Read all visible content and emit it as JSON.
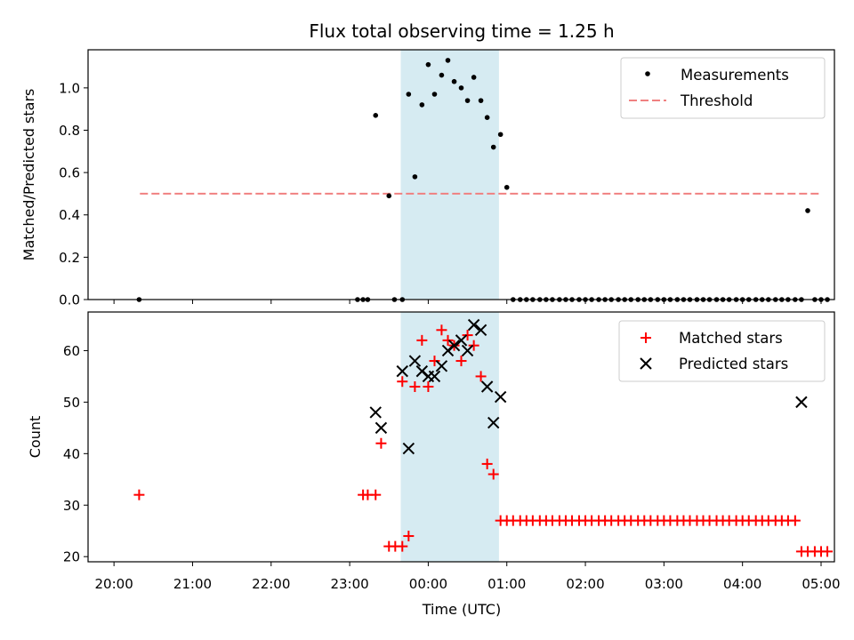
{
  "chart_data": {
    "type": "scatter",
    "title": "Flux total observing time = 1.25 h",
    "x_label": "Time (UTC)",
    "x_unit": "hours relative to 00:00 UTC",
    "x_range": [
      -4.33,
      5.17
    ],
    "x_ticks": [
      {
        "value": -4,
        "label": "20:00"
      },
      {
        "value": -3,
        "label": "21:00"
      },
      {
        "value": -2,
        "label": "22:00"
      },
      {
        "value": -1,
        "label": "23:00"
      },
      {
        "value": 0,
        "label": "00:00"
      },
      {
        "value": 1,
        "label": "01:00"
      },
      {
        "value": 2,
        "label": "02:00"
      },
      {
        "value": 3,
        "label": "03:00"
      },
      {
        "value": 4,
        "label": "04:00"
      },
      {
        "value": 5,
        "label": "05:00"
      }
    ],
    "highlight_span": {
      "x_start": -0.35,
      "x_end": 0.9,
      "color": "#add8e6"
    },
    "top_panel": {
      "ylabel": "Matched/Predicted stars",
      "ylim": [
        0,
        1.18
      ],
      "y_ticks": [
        0.0,
        0.2,
        0.4,
        0.6,
        0.8,
        1.0
      ],
      "y_tick_labels": [
        "0.0",
        "0.2",
        "0.4",
        "0.6",
        "0.8",
        "1.0"
      ],
      "legend": [
        "Measurements",
        "Threshold"
      ],
      "threshold": {
        "name": "Threshold",
        "value": 0.5,
        "x_start": -3.67,
        "x_end": 5.0,
        "color": "#f08080"
      },
      "measurements": {
        "name": "Measurements",
        "color": "#000000",
        "x": [
          -3.68,
          -0.9,
          -0.83,
          -0.77,
          -0.67,
          -0.5,
          -0.43,
          -0.33,
          -0.25,
          -0.17,
          -0.08,
          0.0,
          0.08,
          0.17,
          0.25,
          0.33,
          0.42,
          0.5,
          0.58,
          0.67,
          0.75,
          0.83,
          0.92,
          1.0,
          1.08,
          1.17,
          1.25,
          1.33,
          1.42,
          1.5,
          1.58,
          1.67,
          1.75,
          1.83,
          1.92,
          2.0,
          2.08,
          2.17,
          2.25,
          2.33,
          2.42,
          2.5,
          2.58,
          2.67,
          2.75,
          2.83,
          2.92,
          3.0,
          3.08,
          3.17,
          3.25,
          3.33,
          3.42,
          3.5,
          3.58,
          3.67,
          3.75,
          3.83,
          3.92,
          4.0,
          4.08,
          4.17,
          4.25,
          4.33,
          4.42,
          4.5,
          4.58,
          4.67,
          4.75,
          4.83,
          4.92,
          5.0,
          5.08
        ],
        "y": [
          0,
          0,
          0,
          0,
          0.87,
          0.49,
          0,
          0,
          0.97,
          0.58,
          0.92,
          1.11,
          0.97,
          1.06,
          1.13,
          1.03,
          1.0,
          0.94,
          1.05,
          0.94,
          0.86,
          0.72,
          0.78,
          0.53,
          0,
          0,
          0,
          0,
          0,
          0,
          0,
          0,
          0,
          0,
          0,
          0,
          0,
          0,
          0,
          0,
          0,
          0,
          0,
          0,
          0,
          0,
          0,
          0,
          0,
          0,
          0,
          0,
          0,
          0,
          0,
          0,
          0,
          0,
          0,
          0,
          0,
          0,
          0,
          0,
          0,
          0,
          0,
          0,
          0,
          0.42,
          0,
          0,
          0
        ]
      }
    },
    "bottom_panel": {
      "ylabel": "Count",
      "ylim": [
        19,
        67.5
      ],
      "y_ticks": [
        20,
        30,
        40,
        50,
        60
      ],
      "y_tick_labels": [
        "20",
        "30",
        "40",
        "50",
        "60"
      ],
      "legend": [
        "Matched stars",
        "Predicted stars"
      ],
      "matched": {
        "name": "Matched stars",
        "color": "#ff0000",
        "marker": "+",
        "x": [
          -3.68,
          -0.83,
          -0.77,
          -0.67,
          -0.6,
          -0.5,
          -0.42,
          -0.33,
          -0.33,
          -0.25,
          -0.17,
          -0.08,
          0.0,
          0.08,
          0.17,
          0.25,
          0.33,
          0.42,
          0.5,
          0.58,
          0.67,
          0.75,
          0.83,
          0.92,
          1.0,
          1.08,
          1.17,
          1.25,
          1.33,
          1.42,
          1.5,
          1.58,
          1.67,
          1.75,
          1.83,
          1.92,
          2.0,
          2.08,
          2.17,
          2.25,
          2.33,
          2.42,
          2.5,
          2.58,
          2.67,
          2.75,
          2.83,
          2.92,
          3.0,
          3.08,
          3.17,
          3.25,
          3.33,
          3.42,
          3.5,
          3.58,
          3.67,
          3.75,
          3.83,
          3.92,
          4.0,
          4.08,
          4.17,
          4.25,
          4.33,
          4.42,
          4.5,
          4.58,
          4.67,
          4.75,
          4.83,
          4.92,
          5.0,
          5.08
        ],
        "y": [
          32,
          32,
          32,
          32,
          42,
          22,
          22,
          22,
          54,
          24,
          53,
          62,
          53,
          58,
          64,
          62,
          61,
          58,
          63,
          61,
          55,
          38,
          36,
          27,
          27,
          27,
          27,
          27,
          27,
          27,
          27,
          27,
          27,
          27,
          27,
          27,
          27,
          27,
          27,
          27,
          27,
          27,
          27,
          27,
          27,
          27,
          27,
          27,
          27,
          27,
          27,
          27,
          27,
          27,
          27,
          27,
          27,
          27,
          27,
          27,
          27,
          27,
          27,
          27,
          27,
          27,
          27,
          27,
          27,
          21,
          21,
          21,
          21,
          21
        ]
      },
      "predicted": {
        "name": "Predicted stars",
        "color": "#000000",
        "marker": "x",
        "x": [
          -0.67,
          -0.6,
          -0.33,
          -0.25,
          -0.17,
          -0.08,
          0.0,
          0.08,
          0.17,
          0.25,
          0.33,
          0.42,
          0.5,
          0.58,
          0.67,
          0.75,
          0.83,
          0.92,
          4.75
        ],
        "y": [
          48,
          45,
          56,
          41,
          58,
          56,
          55,
          55,
          57,
          60,
          61,
          62,
          60,
          65,
          64,
          53,
          46,
          51,
          50
        ]
      }
    }
  }
}
